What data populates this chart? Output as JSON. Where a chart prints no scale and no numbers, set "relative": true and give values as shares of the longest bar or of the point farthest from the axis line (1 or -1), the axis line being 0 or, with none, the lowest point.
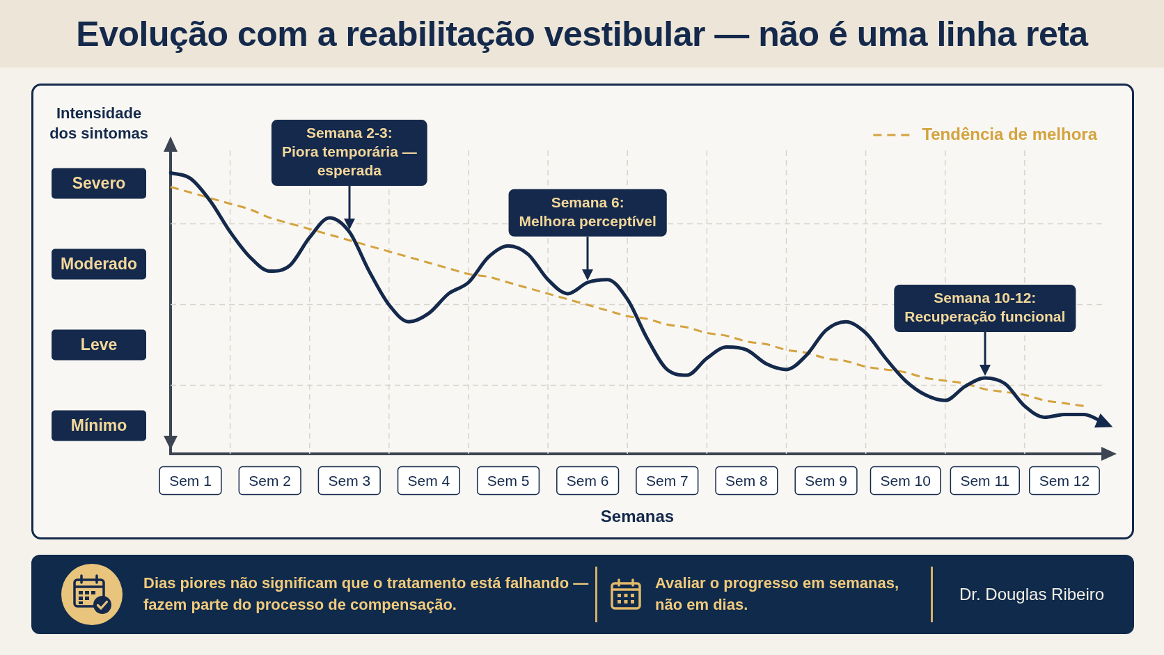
{
  "chart_data": {
    "type": "line",
    "relative": true,
    "title": "Evolução com a reabilitação vestibular — não é uma linha reta",
    "xlabel": "Semanas",
    "ylabel": "Intensidade\ndos sintomas",
    "categories": [
      null,
      "Sem 1",
      null,
      null,
      null,
      "Sem 2",
      null,
      null,
      null,
      "Sem 3",
      null,
      null,
      null,
      "Sem 4",
      null,
      null,
      null,
      "Sem 5",
      null,
      null,
      null,
      "Sem 6",
      null,
      null,
      null,
      "Sem 7",
      null,
      null,
      null,
      "Sem 8",
      null,
      null,
      null,
      "Sem 9",
      null,
      null,
      null,
      "Sem 10",
      null,
      null,
      null,
      "Sem 11",
      null,
      null,
      null,
      "Sem 12",
      null,
      null
    ],
    "grid": true,
    "legend": "top right",
    "marker": "none",
    "series": [
      {
        "color": "#14294b",
        "values": [
          1.0,
          0.98,
          0.9,
          0.79,
          0.7,
          0.65,
          0.67,
          0.77,
          0.84,
          0.79,
          0.65,
          0.53,
          0.47,
          0.5,
          0.57,
          0.61,
          0.7,
          0.74,
          0.71,
          0.62,
          0.57,
          0.61,
          0.62,
          0.55,
          0.41,
          0.3,
          0.28,
          0.34,
          0.38,
          0.37,
          0.32,
          0.3,
          0.35,
          0.44,
          0.47,
          0.43,
          0.34,
          0.26,
          0.21,
          0.19,
          0.24,
          0.27,
          0.25,
          0.17,
          0.13,
          0.14,
          0.14,
          0.11
        ]
      },
      {
        "name": "Tendência de melhora",
        "color": "#d3a33f",
        "line_style": "dashed",
        "values": [
          0.95,
          0.93,
          0.91,
          0.89,
          0.87,
          0.84,
          0.82,
          0.8,
          0.78,
          0.76,
          0.74,
          0.72,
          0.7,
          0.68,
          0.66,
          0.64,
          0.63,
          0.61,
          0.59,
          0.57,
          0.55,
          0.53,
          0.51,
          0.49,
          0.48,
          0.46,
          0.45,
          0.43,
          0.42,
          0.4,
          0.39,
          0.37,
          0.36,
          0.34,
          0.33,
          0.31,
          0.3,
          0.29,
          0.27,
          0.26,
          0.25,
          0.23,
          0.22,
          0.21,
          0.19,
          0.18,
          0.17,
          null
        ]
      }
    ],
    "annotations": [
      "Semana 2-3:\nPiora temporária —\nesperada",
      "Semana 6:\nMelhora perceptível",
      "Semana 10-12:\nRecuperação funcional",
      "Severo",
      "Moderado",
      "Leve",
      "Mínimo",
      "Dias piores não significam que o tratamento está falhando —\nfazem parte do processo de compensação.",
      "Avaliar o progresso em semanas,\nnão em dias.",
      "Dr. Douglas Ribeiro"
    ]
  }
}
